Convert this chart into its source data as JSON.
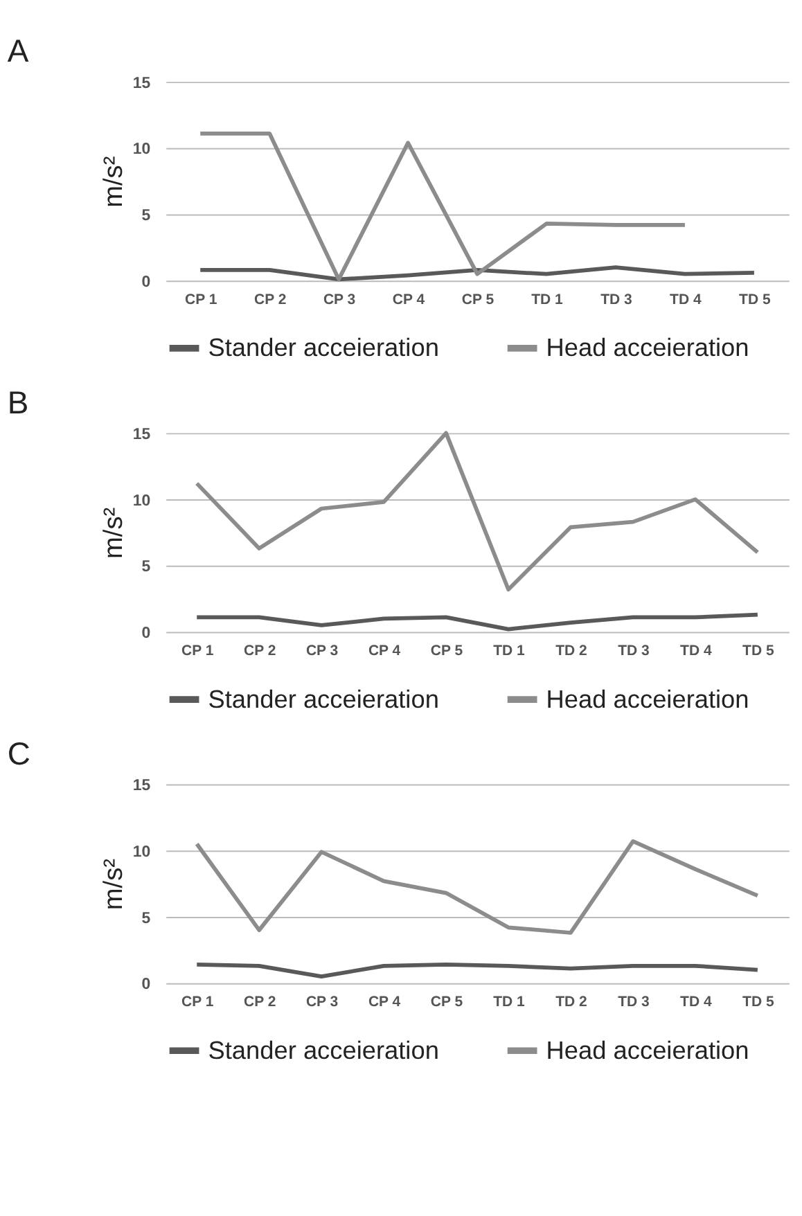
{
  "chart_data": [
    {
      "type": "line",
      "title": "A",
      "ylabel": "m/s²",
      "categories": [
        "CP 1",
        "CP 2",
        "CP 3",
        "CP 4",
        "CP 5",
        "TD 1",
        "TD 3",
        "TD 4",
        "TD 5"
      ],
      "series": [
        {
          "name": "Stander acceieration",
          "color": "#595959",
          "values": [
            0.8,
            0.8,
            0.1,
            0.4,
            0.8,
            0.5,
            1.0,
            0.5,
            0.6
          ]
        },
        {
          "name": "Head acceieration",
          "color": "#8c8c8c",
          "values": [
            11.1,
            11.1,
            0.1,
            10.4,
            0.5,
            4.3,
            4.2,
            4.2,
            null
          ]
        }
      ],
      "ylim": [
        0,
        15
      ],
      "yticks": [
        0,
        5,
        10,
        15
      ],
      "grid": "y",
      "legend": "bottom",
      "marker": "none",
      "line_style": "solid"
    },
    {
      "type": "line",
      "title": "B",
      "ylabel": "m/s²",
      "categories": [
        "CP 1",
        "CP 2",
        "CP 3",
        "CP 4",
        "CP 5",
        "TD 1",
        "TD 2",
        "TD 3",
        "TD 4",
        "TD 5"
      ],
      "series": [
        {
          "name": "Stander acceieration",
          "color": "#595959",
          "values": [
            1.1,
            1.1,
            0.5,
            1.0,
            1.1,
            0.2,
            0.7,
            1.1,
            1.1,
            1.3
          ]
        },
        {
          "name": "Head acceieration",
          "color": "#8c8c8c",
          "values": [
            11.2,
            6.3,
            9.3,
            9.8,
            15.0,
            3.2,
            7.9,
            8.3,
            10.0,
            6.0
          ]
        }
      ],
      "ylim": [
        0,
        15
      ],
      "yticks": [
        0,
        5,
        10,
        15
      ],
      "grid": "y",
      "legend": "bottom",
      "marker": "none",
      "line_style": "solid"
    },
    {
      "type": "line",
      "title": "C",
      "ylabel": "m/s²",
      "categories": [
        "CP 1",
        "CP 2",
        "CP 3",
        "CP 4",
        "CP 5",
        "TD 1",
        "TD 2",
        "TD 3",
        "TD 4",
        "TD 5"
      ],
      "series": [
        {
          "name": "Stander acceieration",
          "color": "#595959",
          "values": [
            1.4,
            1.3,
            0.5,
            1.3,
            1.4,
            1.3,
            1.1,
            1.3,
            1.3,
            1.0
          ]
        },
        {
          "name": "Head acceieration",
          "color": "#8c8c8c",
          "values": [
            10.5,
            4.0,
            9.9,
            7.7,
            6.8,
            4.2,
            3.8,
            10.7,
            8.6,
            6.6
          ]
        }
      ],
      "ylim": [
        0,
        15
      ],
      "yticks": [
        0,
        5,
        10,
        15
      ],
      "grid": "y",
      "legend": "bottom",
      "marker": "none",
      "line_style": "solid"
    }
  ]
}
